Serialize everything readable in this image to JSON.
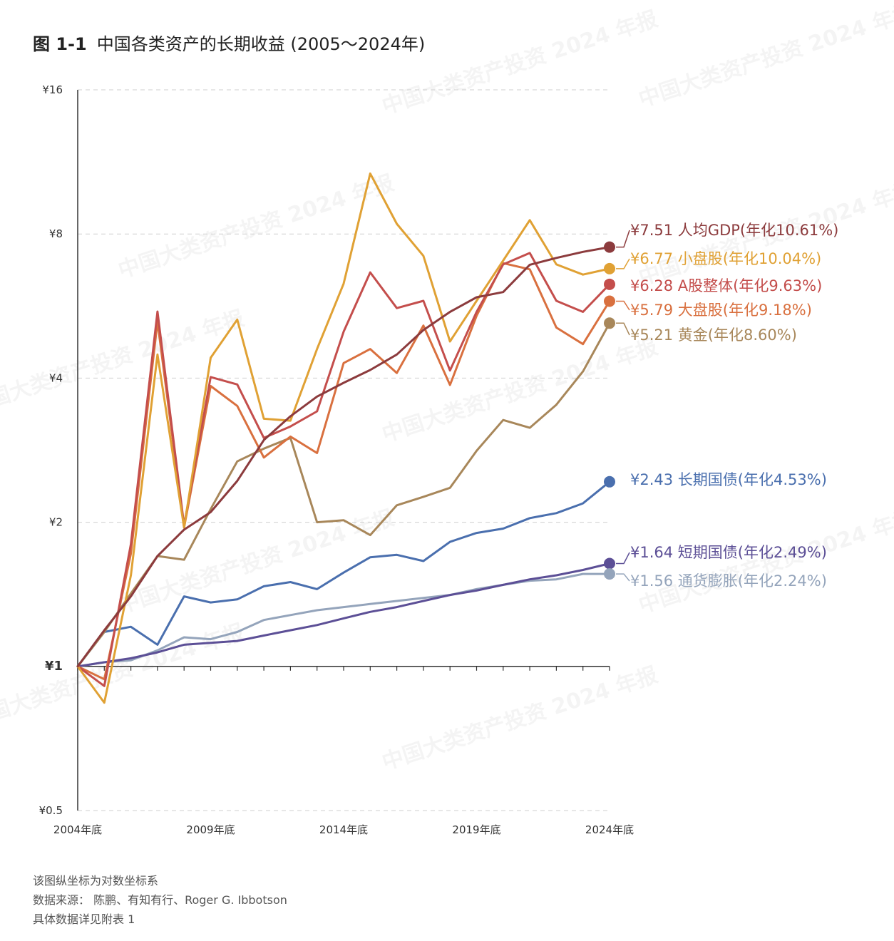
{
  "title": {
    "figure_number": "图 1-1",
    "text": "中国各类资产的长期收益 (2005～2024年)"
  },
  "watermark_text": "中国大类资产投资 2024 年报",
  "notes": [
    "该图纵坐标为对数坐标系",
    "数据来源：  陈鹏、有知有行、Roger G. Ibbotson",
    "具体数据详见附表 1"
  ],
  "chart_data": {
    "type": "line",
    "y_scale": "log",
    "ylim": [
      0.5,
      16
    ],
    "y_ticks": [
      {
        "value": 0.5,
        "label": "¥0.5"
      },
      {
        "value": 1,
        "label": "¥1"
      },
      {
        "value": 2,
        "label": "¥2"
      },
      {
        "value": 4,
        "label": "¥4"
      },
      {
        "value": 8,
        "label": "¥8"
      },
      {
        "value": 16,
        "label": "¥16"
      }
    ],
    "x": [
      2004,
      2005,
      2006,
      2007,
      2008,
      2009,
      2010,
      2011,
      2012,
      2013,
      2014,
      2015,
      2016,
      2017,
      2018,
      2019,
      2020,
      2021,
      2022,
      2023,
      2024
    ],
    "x_ticks": [
      {
        "value": 2004,
        "label": "2004年底"
      },
      {
        "value": 2009,
        "label": "2009年底"
      },
      {
        "value": 2014,
        "label": "2014年底"
      },
      {
        "value": 2019,
        "label": "2019年底"
      },
      {
        "value": 2024,
        "label": "2024年底"
      }
    ],
    "grid": true,
    "series": [
      {
        "name": "人均GDP",
        "label": "¥7.51 人均GDP(年化10.61%)",
        "color": "#8c3b3d",
        "values": [
          1,
          1.19,
          1.4,
          1.7,
          1.93,
          2.1,
          2.44,
          2.97,
          3.33,
          3.66,
          3.91,
          4.16,
          4.48,
          5.04,
          5.5,
          5.9,
          6.05,
          6.9,
          7.13,
          7.34,
          7.51
        ]
      },
      {
        "name": "小盘股",
        "label": "¥6.77 小盘股(年化10.04%)",
        "color": "#e0a134",
        "values": [
          1,
          0.84,
          1.55,
          4.48,
          1.95,
          4.41,
          5.3,
          3.29,
          3.26,
          4.6,
          6.3,
          10.7,
          8.4,
          7.2,
          4.77,
          5.8,
          7.04,
          8.55,
          6.91,
          6.58,
          6.77
        ]
      },
      {
        "name": "A股整体",
        "label": "¥6.28 A股整体(年化9.63%)",
        "color": "#c44e4c",
        "values": [
          1,
          0.91,
          1.8,
          5.51,
          1.97,
          4.02,
          3.88,
          3.0,
          3.17,
          3.41,
          5.0,
          6.65,
          5.6,
          5.8,
          4.15,
          5.5,
          6.91,
          7.3,
          5.8,
          5.5,
          6.28
        ]
      },
      {
        "name": "大盘股",
        "label": "¥5.79 大盘股(年化9.18%)",
        "color": "#d9703f",
        "values": [
          1,
          0.94,
          1.72,
          5.25,
          1.95,
          3.85,
          3.5,
          2.73,
          3.02,
          2.79,
          4.3,
          4.6,
          4.1,
          5.15,
          3.87,
          5.4,
          6.95,
          6.75,
          5.1,
          4.71,
          5.79
        ]
      },
      {
        "name": "黄金",
        "label": "¥5.21 黄金(年化8.60%)",
        "color": "#a8875a",
        "values": [
          1,
          1.18,
          1.42,
          1.7,
          1.67,
          2.13,
          2.68,
          2.85,
          3.0,
          2.0,
          2.02,
          1.88,
          2.17,
          2.26,
          2.36,
          2.82,
          3.27,
          3.15,
          3.52,
          4.13,
          5.21
        ]
      },
      {
        "name": "长期国债",
        "label": "¥2.43 长期国债(年化4.53%)",
        "color": "#4a6fae",
        "values": [
          1,
          1.18,
          1.21,
          1.11,
          1.4,
          1.36,
          1.38,
          1.47,
          1.5,
          1.45,
          1.57,
          1.69,
          1.71,
          1.66,
          1.82,
          1.9,
          1.94,
          2.04,
          2.09,
          2.19,
          2.43
        ]
      },
      {
        "name": "短期国债",
        "label": "¥1.64 短期国债(年化2.49%)",
        "color": "#5c4f96",
        "values": [
          1,
          1.02,
          1.04,
          1.07,
          1.11,
          1.12,
          1.13,
          1.16,
          1.19,
          1.22,
          1.26,
          1.3,
          1.33,
          1.37,
          1.41,
          1.44,
          1.48,
          1.52,
          1.55,
          1.59,
          1.64
        ]
      },
      {
        "name": "通货膨胀",
        "label": "¥1.56 通货膨胀(年化2.24%)",
        "color": "#94a4bb",
        "values": [
          1,
          1.02,
          1.03,
          1.08,
          1.15,
          1.14,
          1.18,
          1.25,
          1.28,
          1.31,
          1.33,
          1.35,
          1.37,
          1.39,
          1.41,
          1.45,
          1.48,
          1.51,
          1.52,
          1.56,
          1.56
        ]
      }
    ]
  }
}
